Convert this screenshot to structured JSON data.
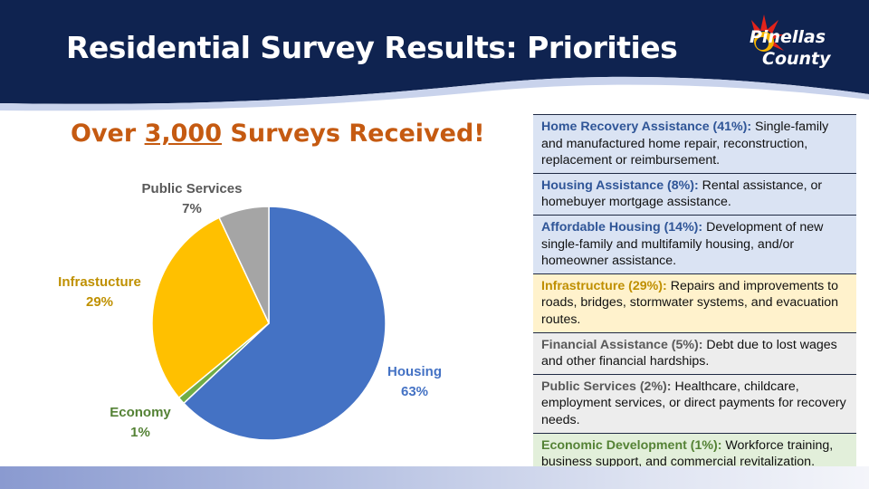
{
  "header": {
    "title": "Residential Survey Results: Priorities",
    "background_color": "#0f2350"
  },
  "logo": {
    "line1": "Pinellas",
    "line2": "County",
    "icon": "sun-burst-logo-icon"
  },
  "subtitle": {
    "prefix": "Over ",
    "number": "3,000",
    "suffix": " Surveys Received!"
  },
  "chart_data": {
    "type": "pie",
    "slices": [
      {
        "label": "Housing",
        "value": 63,
        "display": "63%",
        "color": "#4472c4",
        "label_color": "#4472c4"
      },
      {
        "label": "Economy",
        "value": 1,
        "display": "1%",
        "color": "#70ad47",
        "label_color": "#548235"
      },
      {
        "label": "Infrastucture",
        "value": 29,
        "display": "29%",
        "color": "#ffc000",
        "label_color": "#bf9000"
      },
      {
        "label": "Public Services",
        "value": 7,
        "display": "7%",
        "color": "#a5a5a5",
        "label_color": "#595959"
      }
    ]
  },
  "table": {
    "rows": [
      {
        "title": "Home Recovery Assistance (41%):",
        "text": " Single-family and manufactured home repair, reconstruction, replacement or reimbursement.",
        "bg": "#dae3f3",
        "title_color": "#2f5597"
      },
      {
        "title": "Housing Assistance (8%):",
        "text": " Rental assistance, or homebuyer mortgage assistance.",
        "bg": "#dae3f3",
        "title_color": "#2f5597"
      },
      {
        "title": "Affordable Housing (14%):",
        "text": " Development of new single-family and multifamily housing, and/or homeowner assistance.",
        "bg": "#dae3f3",
        "title_color": "#2f5597"
      },
      {
        "title": "Infrastructure (29%):",
        "text": " Repairs and improvements to roads, bridges, stormwater systems, and evacuation routes.",
        "bg": "#fff2cc",
        "title_color": "#bf8f00"
      },
      {
        "title": "Financial Assistance (5%):",
        "text": " Debt due to lost wages and other financial hardships.",
        "bg": "#ededed",
        "title_color": "#595959"
      },
      {
        "title": "Public Services (2%):",
        "text": " Healthcare, childcare, employment services, or direct payments for recovery needs.",
        "bg": "#ededed",
        "title_color": "#595959"
      },
      {
        "title": "Economic Development (1%):",
        "text": " Workforce training, business support, and commercial revitalization.",
        "bg": "#e2efda",
        "title_color": "#548235"
      }
    ]
  }
}
